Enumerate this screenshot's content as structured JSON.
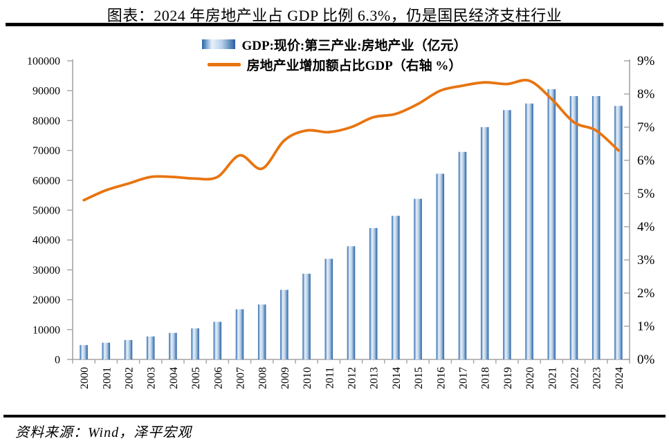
{
  "page": {
    "title": "图表：2024 年房地产业占 GDP 比例 6.3%，仍是国民经济支柱行业",
    "source": "资料来源：Wind，泽平宏观"
  },
  "chart_data": {
    "type": "combo",
    "title": "图表：2024 年房地产业占 GDP 比例 6.3%，仍是国民经济支柱行业",
    "legend_position": "top",
    "grid": false,
    "categories": [
      "2000",
      "2001",
      "2002",
      "2003",
      "2004",
      "2005",
      "2006",
      "2007",
      "2008",
      "2009",
      "2010",
      "2011",
      "2012",
      "2013",
      "2014",
      "2015",
      "2016",
      "2017",
      "2018",
      "2019",
      "2020",
      "2021",
      "2022",
      "2023",
      "2024"
    ],
    "series": [
      {
        "name": "GDP:现价:第三产业:房地产业（亿元）",
        "type": "bar",
        "axis": "left",
        "values": [
          4800,
          5600,
          6500,
          7700,
          8900,
          10400,
          12600,
          16800,
          18400,
          23300,
          28700,
          33700,
          37900,
          44000,
          48100,
          53800,
          62200,
          69500,
          77800,
          83500,
          85700,
          90500,
          88200,
          88200,
          84900
        ]
      },
      {
        "name": "房地产业增加额占比GDP（右轴 %）",
        "type": "line",
        "axis": "right",
        "values": [
          4.8,
          5.1,
          5.3,
          5.5,
          5.5,
          5.45,
          5.5,
          6.15,
          5.75,
          6.6,
          6.9,
          6.85,
          7.0,
          7.3,
          7.4,
          7.7,
          8.1,
          8.25,
          8.35,
          8.3,
          8.4,
          7.85,
          7.15,
          6.9,
          6.3
        ]
      }
    ],
    "left_axis": {
      "min": 0,
      "max": 100000,
      "step": 10000,
      "labels": [
        "0",
        "10000",
        "20000",
        "30000",
        "40000",
        "50000",
        "60000",
        "70000",
        "80000",
        "90000",
        "100000"
      ]
    },
    "right_axis": {
      "min": 0,
      "max": 9,
      "step": 1,
      "labels": [
        "0%",
        "1%",
        "2%",
        "3%",
        "4%",
        "5%",
        "6%",
        "7%",
        "8%",
        "9%"
      ]
    },
    "colors": {
      "bar_gradient": [
        "#2b63a5",
        "#6f9dce",
        "#e9f1fa",
        "#b6cfe9",
        "#5d8cbd",
        "#2b5f9e"
      ],
      "line": "#E8740F",
      "axis": "#a3a3a3",
      "text": "#000000"
    }
  }
}
